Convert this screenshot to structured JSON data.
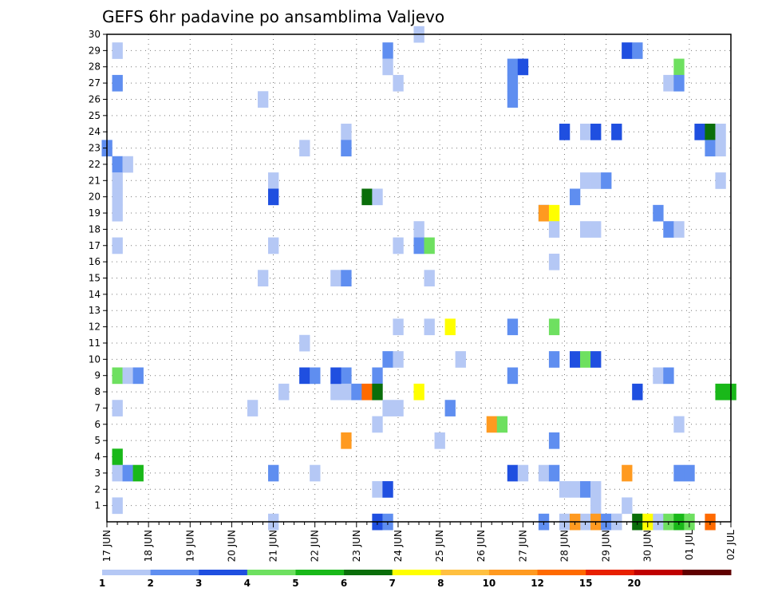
{
  "chart_data": {
    "type": "heatmap",
    "title": "GEFS 6hr padavine po ansamblima Valjevo",
    "xlabel": "",
    "ylabel": "",
    "x_tick_labels": [
      "17 JUN",
      "18 JUN",
      "19 JUN",
      "20 JUN",
      "21 JUN",
      "22 JUN",
      "23 JUN",
      "24 JUN",
      "25 JUN",
      "26 JUN",
      "27 JUN",
      "28 JUN",
      "29 JUN",
      "30 JUN",
      "01 JUL",
      "02 JUL"
    ],
    "xlim": [
      0,
      60
    ],
    "ylim": [
      0,
      30
    ],
    "y_tick_labels": [
      "1",
      "2",
      "3",
      "4",
      "5",
      "6",
      "7",
      "8",
      "9",
      "10",
      "11",
      "12",
      "13",
      "14",
      "15",
      "16",
      "17",
      "18",
      "19",
      "20",
      "21",
      "22",
      "23",
      "24",
      "25",
      "26",
      "27",
      "28",
      "29",
      "30"
    ],
    "grid": true,
    "legend_placement": "bottom",
    "legend": {
      "labels": [
        "1",
        "2",
        "3",
        "4",
        "5",
        "6",
        "7",
        "8",
        "10",
        "12",
        "15",
        "20"
      ],
      "colors": [
        "#b5c8f5",
        "#5f8ef0",
        "#1f4fe0",
        "#6ee060",
        "#19b819",
        "#0a6e0a",
        "#ffff00",
        "#ffc040",
        "#ff9a20",
        "#ff6a00",
        "#e82000",
        "#c00000",
        "#600000"
      ]
    },
    "cells": [
      [
        1,
        29,
        1
      ],
      [
        1,
        27,
        2
      ],
      [
        1,
        22,
        2
      ],
      [
        2,
        22,
        1
      ],
      [
        1,
        21,
        1
      ],
      [
        1,
        20,
        1
      ],
      [
        1,
        19,
        1
      ],
      [
        1,
        17,
        1
      ],
      [
        1,
        9,
        4
      ],
      [
        2,
        9,
        1
      ],
      [
        3,
        9,
        2
      ],
      [
        1,
        7,
        1
      ],
      [
        1,
        4,
        5
      ],
      [
        1,
        3,
        1
      ],
      [
        2,
        3,
        2
      ],
      [
        3,
        3,
        5
      ],
      [
        1,
        1,
        1
      ],
      [
        0,
        23,
        2
      ],
      [
        15,
        26,
        1
      ],
      [
        16,
        21,
        1
      ],
      [
        16,
        20,
        3
      ],
      [
        16,
        17,
        1
      ],
      [
        15,
        15,
        1
      ],
      [
        16,
        3,
        2
      ],
      [
        14,
        7,
        1
      ],
      [
        16,
        0,
        1
      ],
      [
        19,
        23,
        1
      ],
      [
        19,
        11,
        1
      ],
      [
        19,
        9,
        3
      ],
      [
        20,
        9,
        2
      ],
      [
        17,
        8,
        1
      ],
      [
        20,
        3,
        1
      ],
      [
        23,
        24,
        1
      ],
      [
        23,
        23,
        2
      ],
      [
        22,
        15,
        1
      ],
      [
        23,
        15,
        2
      ],
      [
        23,
        9,
        2
      ],
      [
        22,
        8,
        1
      ],
      [
        23,
        8,
        1
      ],
      [
        24,
        8,
        2
      ],
      [
        23,
        5,
        9
      ],
      [
        22,
        9,
        3
      ],
      [
        27,
        29,
        2
      ],
      [
        27,
        28,
        1
      ],
      [
        28,
        27,
        1
      ],
      [
        25,
        20,
        6
      ],
      [
        26,
        20,
        1
      ],
      [
        28,
        17,
        1
      ],
      [
        28,
        12,
        1
      ],
      [
        27,
        10,
        2
      ],
      [
        28,
        10,
        1
      ],
      [
        26,
        9,
        2
      ],
      [
        25,
        8,
        10
      ],
      [
        26,
        8,
        6
      ],
      [
        27,
        7,
        1
      ],
      [
        28,
        7,
        1
      ],
      [
        26,
        6,
        1
      ],
      [
        26,
        2,
        1
      ],
      [
        27,
        2,
        3
      ],
      [
        26,
        0,
        3
      ],
      [
        27,
        0,
        2
      ],
      [
        30,
        30,
        1
      ],
      [
        30,
        18,
        1
      ],
      [
        30,
        17,
        2
      ],
      [
        31,
        17,
        4
      ],
      [
        31,
        15,
        1
      ],
      [
        31,
        12,
        1
      ],
      [
        30,
        8,
        7
      ],
      [
        33,
        12,
        7
      ],
      [
        33,
        7,
        2
      ],
      [
        32,
        5,
        1
      ],
      [
        34,
        10,
        1
      ],
      [
        37,
        6,
        9
      ],
      [
        38,
        6,
        4
      ],
      [
        39,
        28,
        2
      ],
      [
        40,
        28,
        3
      ],
      [
        39,
        27,
        2
      ],
      [
        39,
        26,
        2
      ],
      [
        42,
        19,
        2
      ],
      [
        42,
        19,
        9
      ],
      [
        43,
        19,
        7
      ],
      [
        43,
        18,
        1
      ],
      [
        43,
        16,
        1
      ],
      [
        39,
        12,
        2
      ],
      [
        43,
        12,
        4
      ],
      [
        43,
        10,
        2
      ],
      [
        39,
        9,
        2
      ],
      [
        39,
        3,
        3
      ],
      [
        40,
        3,
        1
      ],
      [
        42,
        3,
        1
      ],
      [
        43,
        3,
        2
      ],
      [
        43,
        5,
        2
      ],
      [
        42,
        0,
        2
      ],
      [
        44,
        24,
        3
      ],
      [
        46,
        24,
        1
      ],
      [
        47,
        24,
        3
      ],
      [
        46,
        21,
        1
      ],
      [
        47,
        21,
        1
      ],
      [
        48,
        21,
        2
      ],
      [
        45,
        20,
        2
      ],
      [
        46,
        18,
        1
      ],
      [
        47,
        18,
        1
      ],
      [
        45,
        10,
        3
      ],
      [
        46,
        10,
        4
      ],
      [
        47,
        10,
        3
      ],
      [
        44,
        2,
        1
      ],
      [
        45,
        2,
        1
      ],
      [
        46,
        2,
        2
      ],
      [
        47,
        2,
        1
      ],
      [
        47,
        1,
        1
      ],
      [
        46,
        0,
        1
      ],
      [
        47,
        0,
        9
      ],
      [
        50,
        29,
        3
      ],
      [
        51,
        29,
        2
      ],
      [
        49,
        24,
        3
      ],
      [
        48,
        0,
        2
      ],
      [
        49,
        0,
        1
      ],
      [
        50,
        1,
        1
      ],
      [
        50,
        3,
        9
      ],
      [
        51,
        8,
        3
      ],
      [
        55,
        28,
        4
      ],
      [
        54,
        27,
        1
      ],
      [
        55,
        27,
        2
      ],
      [
        53,
        19,
        2
      ],
      [
        54,
        18,
        2
      ],
      [
        55,
        18,
        1
      ],
      [
        53,
        9,
        1
      ],
      [
        54,
        9,
        2
      ],
      [
        55,
        6,
        1
      ],
      [
        55,
        3,
        2
      ],
      [
        56,
        3,
        2
      ],
      [
        57,
        24,
        3
      ],
      [
        58,
        24,
        6
      ],
      [
        59,
        24,
        1
      ],
      [
        58,
        23,
        2
      ],
      [
        59,
        23,
        1
      ],
      [
        59,
        21,
        1
      ],
      [
        59,
        8,
        5
      ],
      [
        60,
        8,
        5
      ],
      [
        51,
        0,
        6
      ],
      [
        52,
        0,
        7
      ],
      [
        53,
        0,
        1
      ],
      [
        54,
        0,
        4
      ],
      [
        55,
        0,
        5
      ],
      [
        56,
        0,
        4
      ],
      [
        58,
        0,
        10
      ],
      [
        44,
        0,
        1
      ],
      [
        45,
        0,
        9
      ],
      [
        49,
        0,
        1
      ]
    ]
  }
}
